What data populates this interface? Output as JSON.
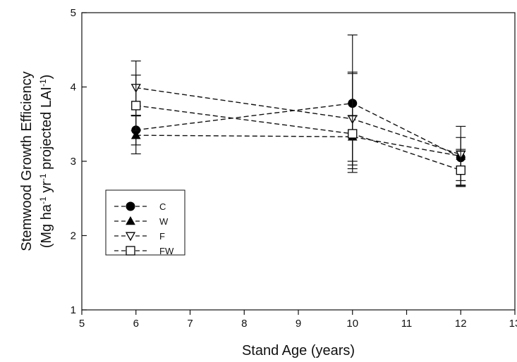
{
  "chart_data": {
    "type": "line",
    "xlabel": "Stand Age (years)",
    "ylabel_line1": "Stemwood Growth Efficiency",
    "ylabel_line2": "(Mg ha-1 yr-1 projected LAI-1)",
    "xlim": [
      5,
      13
    ],
    "ylim": [
      1,
      5
    ],
    "xticks": [
      5,
      6,
      7,
      8,
      9,
      10,
      11,
      12,
      13
    ],
    "yticks": [
      1,
      2,
      3,
      4,
      5
    ],
    "x": [
      6,
      10,
      12
    ],
    "legend_position": "lower-left",
    "grid": false,
    "series": [
      {
        "name": "C",
        "marker": "filled-circle",
        "values": [
          3.42,
          3.78,
          3.05
        ],
        "err_low": [
          3.22,
          2.9,
          2.74
        ],
        "err_high": [
          3.61,
          4.7,
          3.32
        ]
      },
      {
        "name": "W",
        "marker": "filled-triangle-up",
        "values": [
          3.35,
          3.33,
          3.07
        ],
        "err_low": [
          3.1,
          2.85,
          2.67
        ],
        "err_high": [
          3.62,
          4.2,
          3.14
        ]
      },
      {
        "name": "F",
        "marker": "open-triangle-down",
        "values": [
          3.99,
          3.57,
          3.09
        ],
        "err_low": [
          3.62,
          2.95,
          2.66
        ],
        "err_high": [
          4.35,
          4.18,
          3.47
        ]
      },
      {
        "name": "FW",
        "marker": "open-square",
        "values": [
          3.75,
          3.37,
          2.88
        ],
        "err_low": [
          3.41,
          3.0,
          2.68
        ],
        "err_high": [
          4.16,
          3.61,
          3.16
        ]
      }
    ]
  }
}
